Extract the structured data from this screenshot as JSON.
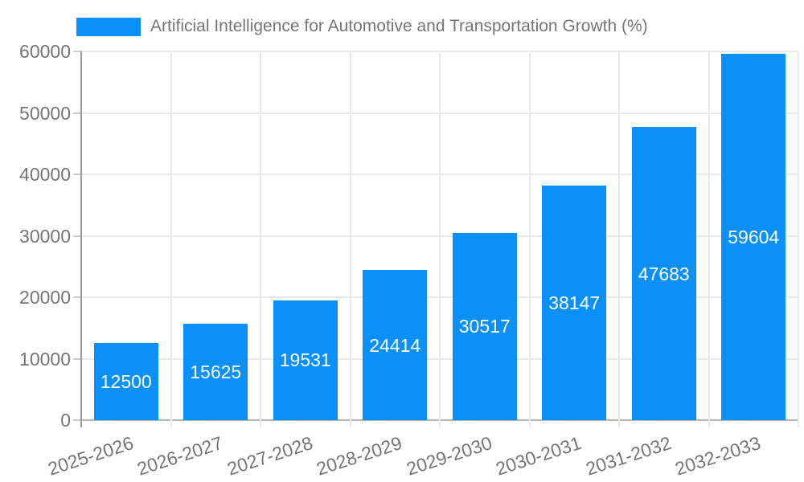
{
  "legend": {
    "label": "Artificial Intelligence for Automotive and Transportation Growth (%)",
    "swatch_color": "#0a90f8"
  },
  "chart_data": {
    "type": "bar",
    "title": "Artificial Intelligence for Automotive and Transportation Growth (%)",
    "categories": [
      "2025-2026",
      "2026-2027",
      "2027-2028",
      "2028-2029",
      "2029-2030",
      "2030-2031",
      "2031-2032",
      "2032-2033"
    ],
    "values": [
      12500,
      15625,
      19531,
      24414,
      30517,
      38147,
      47683,
      59604
    ],
    "value_labels": [
      "12500",
      "15625",
      "19531",
      "24414",
      "30517",
      "38147",
      "47683",
      "59604"
    ],
    "xlabel": "",
    "ylabel": "",
    "ylim": [
      0,
      60000
    ],
    "yticks": [
      0,
      10000,
      20000,
      30000,
      40000,
      50000,
      60000
    ],
    "ytick_labels": [
      "0",
      "10000",
      "20000",
      "30000",
      "40000",
      "50000",
      "60000"
    ],
    "grid": true,
    "legend_position": "top-left",
    "bar_color": "#0a90f8",
    "value_label_style": "inside-center-white"
  },
  "colors": {
    "bar": "#0a90f8",
    "axis_text": "#757575",
    "gridline": "#e9e9e9",
    "x_axis_line": "#b5b5b5",
    "y_axis_line": "#9a9a9a",
    "background": "#ffffff",
    "bar_value_text": "#ffffff"
  }
}
